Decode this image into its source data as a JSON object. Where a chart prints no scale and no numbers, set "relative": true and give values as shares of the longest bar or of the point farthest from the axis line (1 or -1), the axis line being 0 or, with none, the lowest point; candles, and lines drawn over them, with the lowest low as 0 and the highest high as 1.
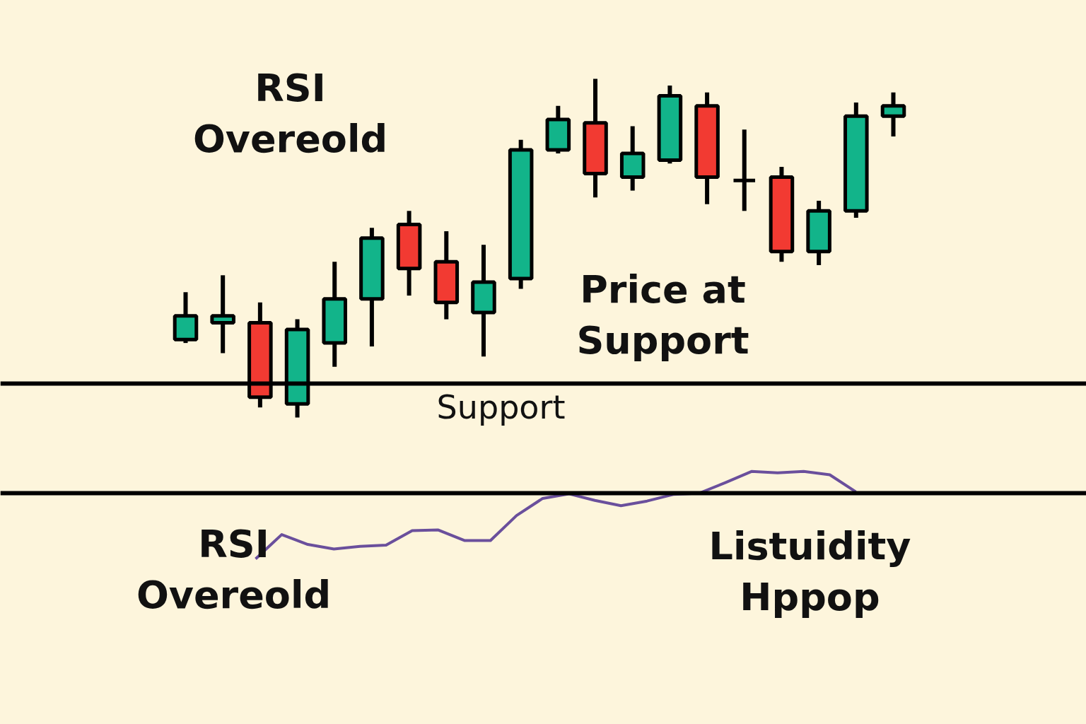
{
  "chart_data": [
    {
      "type": "candlestick",
      "relative": true,
      "categories": [
        null,
        null,
        null,
        null,
        null,
        null,
        null,
        null,
        null,
        null,
        null,
        null,
        null,
        null,
        null,
        null,
        null,
        null,
        null,
        null
      ],
      "ohlc": [
        [
          0.23,
          0.37,
          0.22,
          0.3
        ],
        [
          0.28,
          0.42,
          0.19,
          0.3
        ],
        [
          0.28,
          0.34,
          0.03,
          0.06
        ],
        [
          0.04,
          0.29,
          0,
          0.26
        ],
        [
          0.22,
          0.46,
          0.15,
          0.35
        ],
        [
          0.35,
          0.56,
          0.21,
          0.53
        ],
        [
          0.57,
          0.61,
          0.36,
          0.44
        ],
        [
          0.46,
          0.55,
          0.29,
          0.34
        ],
        [
          0.31,
          0.51,
          0.18,
          0.4
        ],
        [
          0.41,
          0.82,
          0.38,
          0.79
        ],
        [
          0.79,
          0.92,
          0.78,
          0.88
        ],
        [
          0.87,
          1,
          0.65,
          0.72
        ],
        [
          0.71,
          0.86,
          0.67,
          0.78
        ],
        [
          0.76,
          0.98,
          0.75,
          0.95
        ],
        [
          0.92,
          0.96,
          0.63,
          0.71
        ],
        [
          0.7,
          0.85,
          0.61,
          0.7
        ],
        [
          0.71,
          0.74,
          0.46,
          0.49
        ],
        [
          0.49,
          0.64,
          0.45,
          0.61
        ],
        [
          0.61,
          0.93,
          0.59,
          0.89
        ],
        [
          0.89,
          0.96,
          0.83,
          0.92
        ]
      ],
      "colors": [
        "#12b48a",
        "#12b48a",
        "#f23a32",
        "#12b48a",
        "#12b48a",
        "#12b48a",
        "#f23a32",
        "#f23a32",
        "#12b48a",
        "#12b48a",
        "#12b48a",
        "#f23a32",
        "#12b48a",
        "#12b48a",
        "#f23a32",
        "#000000",
        "#f23a32",
        "#12b48a",
        "#12b48a",
        "#12b48a"
      ],
      "ref_lines": [
        {
          "axis": "y",
          "value": 0.1,
          "label": "Support",
          "color": "#000000"
        }
      ],
      "annotations": [
        "RSI\nOvereold",
        "Price at\nSupport"
      ]
    },
    {
      "type": "line",
      "relative": true,
      "categories": [
        null,
        null,
        null,
        null,
        null,
        null,
        null,
        null,
        null,
        null,
        null,
        null,
        null,
        null,
        null,
        null,
        null,
        null,
        null,
        null,
        null,
        null,
        null,
        null
      ],
      "series": [
        {
          "color": "#6a4f9c",
          "values": [
            -1,
            -0.63,
            -0.78,
            -0.85,
            -0.81,
            -0.79,
            -0.57,
            -0.56,
            -0.72,
            -0.72,
            -0.34,
            -0.08,
            -0.01,
            -0.11,
            -0.19,
            -0.12,
            -0.02,
            0,
            0.16,
            0.33,
            0.31,
            0.33,
            0.28,
            0.02
          ]
        }
      ],
      "annotations": [
        "RSI\nOvereold",
        "Listuidity\nHppop"
      ],
      "line_style": "solid"
    }
  ]
}
